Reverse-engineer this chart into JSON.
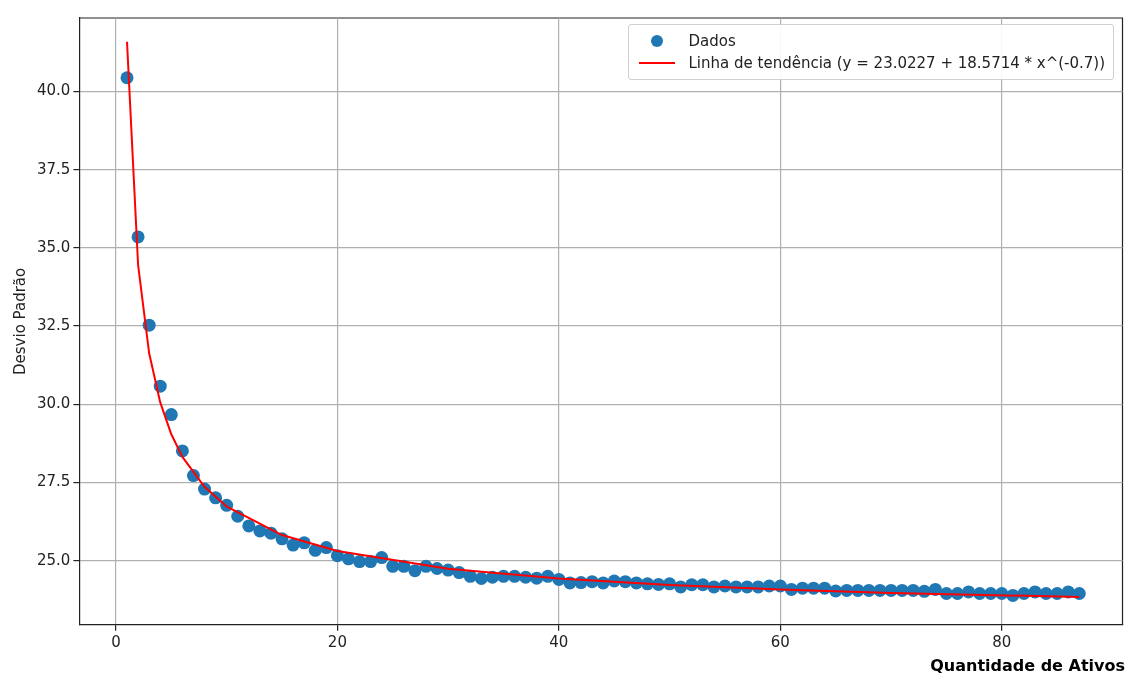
{
  "chart_data": {
    "type": "scatter",
    "xlabel": "Quantidade de Ativos",
    "ylabel": "Desvio Padrão",
    "xlim": [
      -3.3,
      90.9
    ],
    "ylim": [
      22.95,
      42.35
    ],
    "xticks": [
      0,
      20,
      40,
      60,
      80
    ],
    "yticks": [
      {
        "value": 25,
        "label": "25.0"
      },
      {
        "value": 27.5,
        "label": "27.5"
      },
      {
        "value": 30,
        "label": "30.0"
      },
      {
        "value": 32.5,
        "label": "32.5"
      },
      {
        "value": 35,
        "label": "35.0"
      },
      {
        "value": 37.5,
        "label": "37.5"
      },
      {
        "value": 40,
        "label": "40.0"
      }
    ],
    "grid": true,
    "legend": "top right",
    "marker": "circle",
    "series": [
      {
        "name": "Dados",
        "type": "scatter",
        "color": "#1f77b4",
        "x": [
          1,
          2,
          3,
          4,
          5,
          6,
          7,
          8,
          9,
          10,
          11,
          12,
          13,
          14,
          15,
          16,
          17,
          18,
          19,
          20,
          21,
          22,
          23,
          24,
          25,
          26,
          27,
          28,
          29,
          30,
          31,
          32,
          33,
          34,
          35,
          36,
          37,
          38,
          39,
          40,
          41,
          42,
          43,
          44,
          45,
          46,
          47,
          48,
          49,
          50,
          51,
          52,
          53,
          54,
          55,
          56,
          57,
          58,
          59,
          60,
          61,
          62,
          63,
          64,
          65,
          66,
          67,
          68,
          69,
          70,
          71,
          72,
          73,
          74,
          75,
          76,
          77,
          78,
          79,
          80,
          81,
          82,
          83,
          84,
          85,
          86,
          87
        ],
        "values": [
          40.44,
          35.35,
          32.53,
          30.58,
          29.67,
          28.51,
          27.72,
          27.29,
          27.01,
          26.77,
          26.42,
          26.11,
          25.95,
          25.88,
          25.7,
          25.5,
          25.57,
          25.33,
          25.42,
          25.16,
          25.06,
          24.97,
          24.97,
          25.1,
          24.82,
          24.82,
          24.68,
          24.82,
          24.75,
          24.7,
          24.62,
          24.5,
          24.43,
          24.47,
          24.5,
          24.5,
          24.47,
          24.44,
          24.5,
          24.4,
          24.29,
          24.3,
          24.33,
          24.29,
          24.35,
          24.33,
          24.29,
          24.26,
          24.24,
          24.26,
          24.16,
          24.23,
          24.23,
          24.16,
          24.19,
          24.16,
          24.16,
          24.16,
          24.19,
          24.19,
          24.08,
          24.12,
          24.12,
          24.12,
          24.03,
          24.05,
          24.05,
          24.05,
          24.05,
          24.05,
          24.05,
          24.05,
          24.02,
          24.08,
          23.95,
          23.95,
          24.0,
          23.95,
          23.95,
          23.95,
          23.89,
          23.95,
          24.0,
          23.95,
          23.95,
          24.0,
          23.95
        ]
      },
      {
        "name": "Linha de tendência (y = 23.0227 + 18.5714 * x^(-0.7))",
        "type": "line",
        "color": "#ff0000",
        "marker": "none",
        "line_style": "solid",
        "x": [
          1,
          2,
          3,
          4,
          5,
          6,
          8,
          10,
          15,
          20,
          30,
          40,
          50,
          60,
          70,
          87
        ],
        "values": [
          41.59,
          34.46,
          31.63,
          30.06,
          29.04,
          28.32,
          27.36,
          26.73,
          25.82,
          25.31,
          24.74,
          24.43,
          24.22,
          24.08,
          23.97,
          23.84
        ]
      }
    ]
  }
}
